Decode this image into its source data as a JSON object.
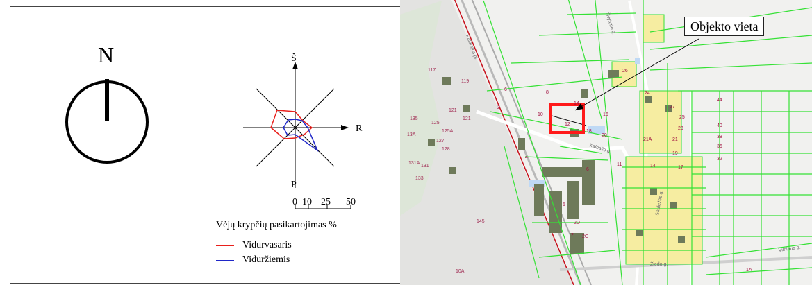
{
  "north_arrow": {
    "label": "N"
  },
  "wind_rose": {
    "directions": {
      "north": "Š",
      "east": "R",
      "south": "P"
    },
    "scale_labels": [
      "0",
      "10",
      "25",
      "50"
    ],
    "title": "Vėjų krypčių pasikartojimas %",
    "legend": [
      {
        "label": "Vidurvasaris",
        "color": "#e8201c"
      },
      {
        "label": "Viduržiemis",
        "color": "#1f27c8"
      }
    ]
  },
  "map": {
    "callout": "Objekto vieta",
    "highlight_color": "#ff1a1a",
    "parcel_line_color": "#35e135",
    "street_labels": [
      "Palangos pl.",
      "Švyturio g.",
      "Kalnalio g.",
      "Sauležės g.",
      "Vilniaus g.",
      "Žiedo g."
    ],
    "parcel_numbers": [
      "117",
      "119",
      "121",
      "121",
      "125",
      "125A",
      "127",
      "128",
      "131A",
      "131",
      "133",
      "135",
      "13A",
      "145",
      "10A",
      "2",
      "4",
      "6",
      "8",
      "10",
      "12",
      "14",
      "16",
      "18",
      "20",
      "24",
      "26",
      "2C",
      "2D",
      "2",
      "5",
      "6",
      "11",
      "14",
      "17",
      "19",
      "21",
      "21A",
      "23",
      "25",
      "27",
      "32",
      "36",
      "38",
      "40",
      "44",
      "1A"
    ]
  }
}
